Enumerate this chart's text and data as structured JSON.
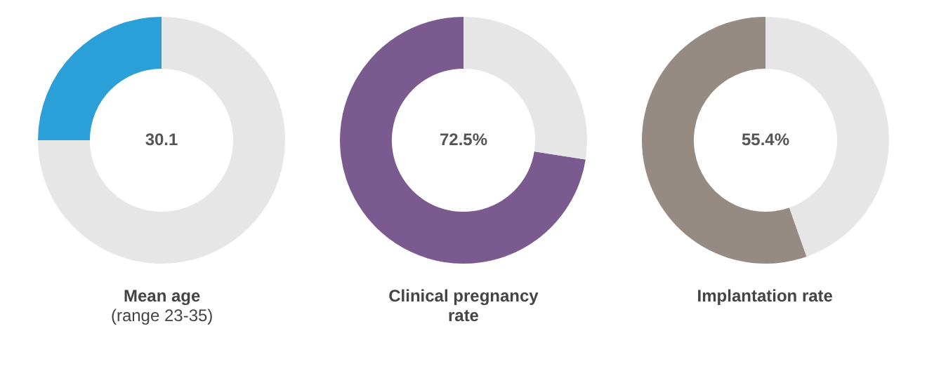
{
  "chart_data": [
    {
      "type": "donut",
      "title": "Mean age",
      "subtitle": "(range 23-35)",
      "categories": [
        null,
        null
      ],
      "values": [
        25,
        75
      ],
      "colors": [
        "#2b9fd8",
        "#e6e6e6"
      ],
      "annotations": [
        "30.1"
      ],
      "legend": false
    },
    {
      "type": "donut",
      "title": "Clinical pregnancy rate",
      "categories": [
        null,
        null
      ],
      "values": [
        72.5,
        27.5
      ],
      "colors": [
        "#7b5b8f",
        "#e6e6e6"
      ],
      "annotations": [
        "72.5%"
      ],
      "legend": false
    },
    {
      "type": "donut",
      "title": "Implantation rate",
      "categories": [
        null,
        null
      ],
      "values": [
        55.4,
        44.6
      ],
      "colors": [
        "#958b82",
        "#e6e6e6"
      ],
      "annotations": [
        "55.4%"
      ],
      "legend": false
    }
  ]
}
